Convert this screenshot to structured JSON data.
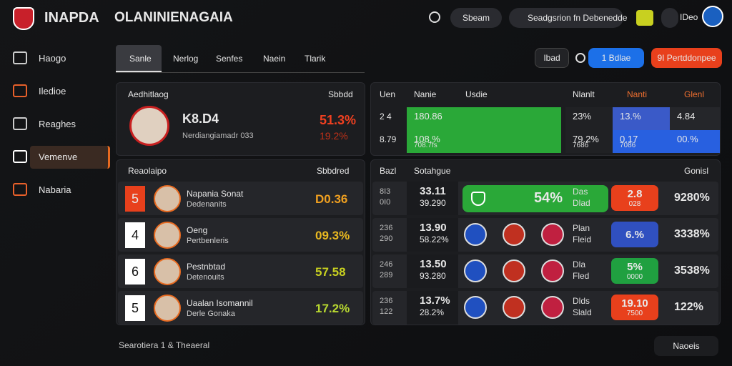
{
  "header": {
    "brand": "INAPDA",
    "title": "OLANINIENAGAIA",
    "pill": "Sbeam",
    "search": "Seadgsrion fn Debenedde",
    "user": "IDeo"
  },
  "sidebar": [
    "Haogo",
    "Iledioe",
    "Reaghes",
    "Vemenve",
    "Nabaria"
  ],
  "tabs": [
    "Sanle",
    "Nerlog",
    "Senfes",
    "Naein",
    "Tlarik"
  ],
  "actions": [
    "Ibad",
    "1 Bdlae",
    "9I Pertddonpee"
  ],
  "summary": {
    "title": "Aedhitlaog",
    "col": "Sbbdd",
    "name": "K8.D4",
    "sub": "Nerdiangiamadr 033",
    "value": "51.3%",
    "value2": "19.2%"
  },
  "ranking": {
    "title": "Reaolaipo",
    "col": "Sbbdred",
    "rows": [
      {
        "rank": "5",
        "name": "Napania Sonat",
        "sub": "Dedenanits",
        "value": "D0.36",
        "color": "#f0a020"
      },
      {
        "rank": "4",
        "name": "Oeng",
        "sub": "Pertbenleris",
        "value": "09.3%",
        "color": "#e8b820"
      },
      {
        "rank": "6",
        "name": "Pestnbtad",
        "sub": "Detenouits",
        "value": "57.58",
        "color": "#c8d020"
      },
      {
        "rank": "5",
        "name": "Uaalan Isomannil",
        "sub": "Derle Gonaka",
        "value": "17.2%",
        "color": "#b8d830"
      }
    ]
  },
  "stats": {
    "headers": [
      "Uen",
      "Nanie",
      "Usdie",
      "Nlanlt",
      "Nanti",
      "Glenl"
    ],
    "rows": [
      {
        "id": "2 4",
        "a": [
          "180.86"
        ],
        "b": [
          "23%"
        ],
        "c": [
          "13.%"
        ],
        "d": [
          "4.84"
        ]
      },
      {
        "id": "8.79",
        "a": [
          "108.%",
          "708.7fs"
        ],
        "b": [
          "79.2%",
          "7686"
        ],
        "c": [
          "0.17",
          "7086"
        ],
        "d": [
          "00.%"
        ]
      }
    ]
  },
  "matches": {
    "headers": [
      "Bazl",
      "Sotahgue",
      "Gonisl"
    ],
    "rows": [
      {
        "ids": [
          "8I3",
          "0I0"
        ],
        "score": [
          "33.11",
          "39.290"
        ],
        "pct": "54%",
        "team": [
          "Das",
          "Dlad"
        ],
        "badge": [
          "2.8",
          "028"
        ],
        "badge_color": "#e8401c",
        "total": "9280%"
      },
      {
        "ids": [
          "236",
          "290"
        ],
        "score": [
          "13.90",
          "58.22%"
        ],
        "team": [
          "Plan",
          "Fleid"
        ],
        "badge": [
          "6.%"
        ],
        "badge_color": "#3050c0",
        "total": "3338%"
      },
      {
        "ids": [
          "246",
          "289"
        ],
        "score": [
          "13.50",
          "93.280"
        ],
        "team": [
          "Dla",
          "Fled"
        ],
        "badge": [
          "5%",
          "0000"
        ],
        "badge_color": "#20a040",
        "total": "3538%"
      },
      {
        "ids": [
          "236",
          "122"
        ],
        "score": [
          "13.7%",
          "28.2%"
        ],
        "team": [
          "Dlds",
          "Slald"
        ],
        "badge": [
          "19.10",
          "7500"
        ],
        "badge_color": "#e8401c",
        "total": "122%"
      }
    ]
  },
  "footer": {
    "text": "Searotiera 1 & Theaeral",
    "button": "Naoeis"
  }
}
